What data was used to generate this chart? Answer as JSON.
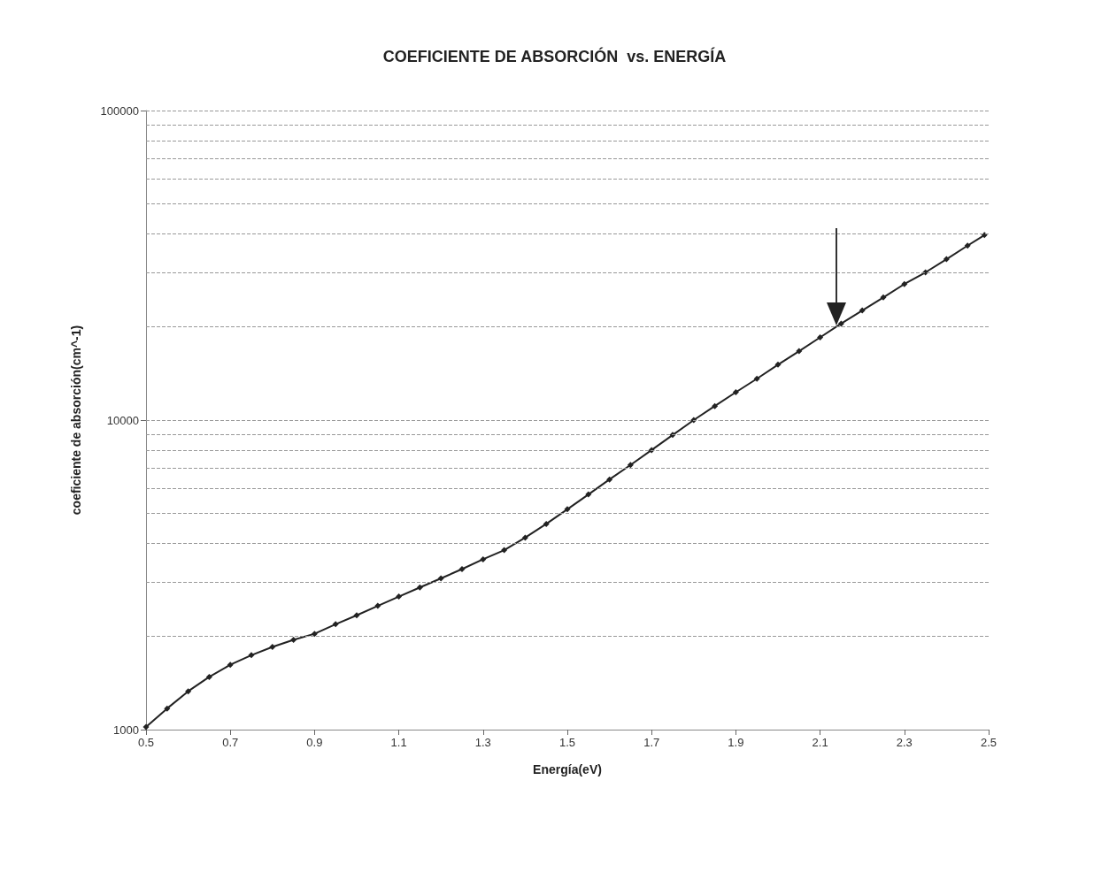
{
  "chart_data": {
    "type": "line",
    "title": "COEFICIENTE DE ABSORCIÓN  vs. ENERGÍA",
    "xlabel": "Energía(eV)",
    "ylabel": "coeficiente de absorción(cm^-1)",
    "x": [
      0.5,
      0.55,
      0.6,
      0.65,
      0.7,
      0.75,
      0.8,
      0.85,
      0.9,
      0.95,
      1.0,
      1.05,
      1.1,
      1.15,
      1.2,
      1.25,
      1.3,
      1.35,
      1.4,
      1.45,
      1.5,
      1.55,
      1.6,
      1.65,
      1.7,
      1.75,
      1.8,
      1.85,
      1.9,
      1.95,
      2.0,
      2.05,
      2.1,
      2.15,
      2.2,
      2.25,
      2.3,
      2.35,
      2.4,
      2.45,
      2.49
    ],
    "series": [
      {
        "color": "#222222",
        "values": [
          1020,
          1170,
          1330,
          1480,
          1620,
          1740,
          1850,
          1950,
          2040,
          2190,
          2340,
          2510,
          2690,
          2880,
          3080,
          3300,
          3550,
          3800,
          4170,
          4620,
          5150,
          5750,
          6430,
          7160,
          8000,
          8950,
          10000,
          11100,
          12300,
          13600,
          15100,
          16700,
          18500,
          20500,
          22600,
          24900,
          27500,
          30000,
          33100,
          36600,
          39600
        ]
      }
    ],
    "xlim": [
      0.5,
      2.5
    ],
    "xticks": [
      0.5,
      0.7,
      0.9,
      1.1,
      1.3,
      1.5,
      1.7,
      1.9,
      2.1,
      2.3,
      2.5
    ],
    "ylim": [
      1000,
      100000
    ],
    "yticks": [
      1000,
      {
        "value": 2000,
        "label": null
      },
      {
        "value": 3000,
        "label": null
      },
      {
        "value": 4000,
        "label": null
      },
      {
        "value": 5000,
        "label": null
      },
      {
        "value": 6000,
        "label": null
      },
      {
        "value": 7000,
        "label": null
      },
      {
        "value": 8000,
        "label": null
      },
      {
        "value": 9000,
        "label": null
      },
      10000,
      {
        "value": 20000,
        "label": null
      },
      {
        "value": 30000,
        "label": null
      },
      {
        "value": 40000,
        "label": null
      },
      {
        "value": 50000,
        "label": null
      },
      {
        "value": 60000,
        "label": null
      },
      {
        "value": 70000,
        "label": null
      },
      {
        "value": 80000,
        "label": null
      },
      {
        "value": 90000,
        "label": null
      },
      100000
    ],
    "log": "y",
    "grid": "y",
    "marker": "diamond",
    "line_style": "solid"
  }
}
